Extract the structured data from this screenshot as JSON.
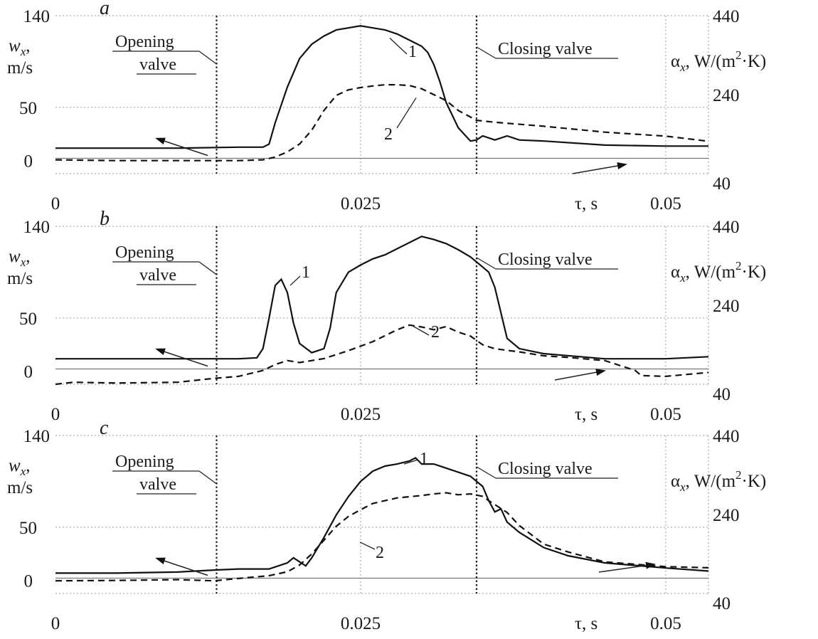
{
  "chart_data": [
    {
      "type": "line",
      "panel_letter": "a",
      "x_ticks": [
        "0",
        "0.025",
        "0.05"
      ],
      "x_axis_label": "τ, s",
      "xlim": [
        0,
        0.0535
      ],
      "left_axis": {
        "ticks": [
          "140",
          "50",
          "0"
        ],
        "ylim": [
          -15,
          140
        ],
        "label_main": "w",
        "label_sub": "x",
        "label_comma": ",",
        "label_unit": "m/s"
      },
      "right_axis": {
        "ticks": [
          "440",
          "240",
          "40"
        ],
        "ylim": [
          40,
          440
        ],
        "label_main": "α",
        "label_sub": "x",
        "label_rest": ", W/(m",
        "label_sup": "2",
        "label_end": "·K)"
      },
      "opening_valve": {
        "x": 0.0132,
        "line1": "Opening",
        "line2": "valve"
      },
      "closing_valve": {
        "x": 0.0345,
        "text": "Closing valve"
      },
      "series": [
        {
          "name": "1",
          "axis": "left",
          "style": "solid",
          "label": "1",
          "x": [
            0,
            0.005,
            0.01,
            0.015,
            0.017,
            0.0175,
            0.018,
            0.019,
            0.02,
            0.021,
            0.022,
            0.023,
            0.024,
            0.025,
            0.026,
            0.027,
            0.028,
            0.029,
            0.03,
            0.0305,
            0.031,
            0.0315,
            0.032,
            0.033,
            0.034,
            0.0345,
            0.035,
            0.036,
            0.037,
            0.038,
            0.04,
            0.045,
            0.05,
            0.0535
          ],
          "y": [
            10,
            10,
            10,
            11,
            11,
            14,
            35,
            70,
            98,
            112,
            120,
            126,
            128,
            130,
            128,
            126,
            122,
            116,
            110,
            104,
            92,
            75,
            55,
            30,
            17,
            18,
            22,
            18,
            22,
            18,
            17,
            13,
            12,
            12
          ]
        },
        {
          "name": "2",
          "axis": "right",
          "style": "dashed",
          "label": "2",
          "x": [
            0,
            0.005,
            0.01,
            0.015,
            0.017,
            0.018,
            0.019,
            0.02,
            0.021,
            0.022,
            0.023,
            0.024,
            0.025,
            0.026,
            0.027,
            0.028,
            0.029,
            0.03,
            0.031,
            0.032,
            0.033,
            0.0345,
            0.036,
            0.04,
            0.045,
            0.05,
            0.0535
          ],
          "y": [
            75,
            73,
            73,
            73,
            75,
            82,
            95,
            115,
            150,
            200,
            238,
            252,
            258,
            262,
            265,
            265,
            263,
            255,
            240,
            225,
            200,
            175,
            170,
            160,
            145,
            135,
            122
          ]
        }
      ]
    },
    {
      "type": "line",
      "panel_letter": "b",
      "x_ticks": [
        "0",
        "0.025",
        "0.05"
      ],
      "x_axis_label": "τ, s",
      "xlim": [
        0,
        0.0535
      ],
      "left_axis": {
        "ticks": [
          "140",
          "50",
          "0"
        ],
        "ylim": [
          -15,
          140
        ],
        "label_main": "w",
        "label_sub": "x",
        "label_comma": ",",
        "label_unit": "m/s"
      },
      "right_axis": {
        "ticks": [
          "440",
          "240",
          "40"
        ],
        "ylim": [
          40,
          440
        ],
        "label_main": "α",
        "label_sub": "x",
        "label_rest": ", W/(m",
        "label_sup": "2",
        "label_end": "·K)"
      },
      "opening_valve": {
        "x": 0.0132,
        "line1": "Opening",
        "line2": "valve"
      },
      "closing_valve": {
        "x": 0.0345,
        "text": "Closing valve"
      },
      "series": [
        {
          "name": "1",
          "axis": "left",
          "style": "solid",
          "label": "1",
          "x": [
            0,
            0.005,
            0.01,
            0.015,
            0.0165,
            0.017,
            0.0175,
            0.018,
            0.0185,
            0.019,
            0.0195,
            0.02,
            0.021,
            0.022,
            0.0225,
            0.023,
            0.024,
            0.025,
            0.026,
            0.027,
            0.028,
            0.029,
            0.03,
            0.031,
            0.032,
            0.033,
            0.034,
            0.035,
            0.0355,
            0.036,
            0.0365,
            0.037,
            0.038,
            0.04,
            0.045,
            0.05,
            0.0535
          ],
          "y": [
            10,
            10,
            10,
            10,
            11,
            20,
            50,
            82,
            88,
            75,
            45,
            25,
            16,
            20,
            40,
            75,
            95,
            102,
            108,
            112,
            118,
            124,
            130,
            127,
            123,
            117,
            110,
            100,
            95,
            80,
            55,
            30,
            20,
            15,
            10,
            10,
            12
          ]
        },
        {
          "name": "2",
          "axis": "right",
          "style": "dashed",
          "label": "2",
          "x": [
            0,
            0.0015,
            0.005,
            0.01,
            0.013,
            0.015,
            0.017,
            0.018,
            0.019,
            0.02,
            0.022,
            0.024,
            0.026,
            0.028,
            0.029,
            0.03,
            0.031,
            0.032,
            0.033,
            0.034,
            0.035,
            0.036,
            0.038,
            0.04,
            0.042,
            0.045,
            0.0475,
            0.048,
            0.05,
            0.0535
          ],
          "y": [
            40,
            45,
            43,
            45,
            55,
            60,
            75,
            90,
            100,
            95,
            105,
            125,
            148,
            178,
            190,
            185,
            178,
            186,
            172,
            162,
            140,
            130,
            122,
            112,
            108,
            100,
            75,
            62,
            60,
            70
          ]
        }
      ]
    },
    {
      "type": "line",
      "panel_letter": "c",
      "x_ticks": [
        "0",
        "0.025",
        "0.05"
      ],
      "x_axis_label": "τ, s",
      "xlim": [
        0,
        0.0535
      ],
      "left_axis": {
        "ticks": [
          "140",
          "50",
          "0"
        ],
        "ylim": [
          -15,
          140
        ],
        "label_main": "w",
        "label_sub": "x",
        "label_comma": ",",
        "label_unit": "m/s"
      },
      "right_axis": {
        "ticks": [
          "440",
          "240",
          "40"
        ],
        "ylim": [
          40,
          440
        ],
        "label_main": "α",
        "label_sub": "x",
        "label_rest": ", W/(m",
        "label_sup": "2",
        "label_end": "·K)"
      },
      "opening_valve": {
        "x": 0.0132,
        "line1": "Opening",
        "line2": "valve"
      },
      "closing_valve": {
        "x": 0.0345,
        "text": "Closing valve"
      },
      "series": [
        {
          "name": "1",
          "axis": "left",
          "style": "solid",
          "label": "1",
          "x": [
            0,
            0.005,
            0.01,
            0.013,
            0.015,
            0.0175,
            0.019,
            0.0195,
            0.02,
            0.0205,
            0.021,
            0.022,
            0.023,
            0.024,
            0.025,
            0.026,
            0.027,
            0.028,
            0.029,
            0.0295,
            0.03,
            0.031,
            0.032,
            0.033,
            0.034,
            0.035,
            0.0355,
            0.036,
            0.0365,
            0.037,
            0.038,
            0.04,
            0.042,
            0.045,
            0.05,
            0.0535
          ],
          "y": [
            5,
            5,
            6,
            8,
            9,
            9,
            15,
            20,
            16,
            12,
            20,
            40,
            62,
            80,
            95,
            105,
            110,
            112,
            115,
            118,
            112,
            112,
            108,
            104,
            100,
            90,
            76,
            65,
            68,
            55,
            45,
            30,
            22,
            15,
            10,
            7
          ]
        },
        {
          "name": "2",
          "axis": "right",
          "style": "dashed",
          "label": "2",
          "x": [
            0,
            0.005,
            0.01,
            0.013,
            0.015,
            0.0175,
            0.019,
            0.02,
            0.021,
            0.022,
            0.023,
            0.024,
            0.025,
            0.026,
            0.027,
            0.028,
            0.03,
            0.031,
            0.032,
            0.033,
            0.034,
            0.035,
            0.0355,
            0.036,
            0.037,
            0.038,
            0.04,
            0.042,
            0.045,
            0.05,
            0.0535
          ],
          "y": [
            72,
            73,
            75,
            72,
            78,
            85,
            95,
            112,
            140,
            175,
            210,
            235,
            252,
            268,
            275,
            282,
            288,
            292,
            295,
            290,
            292,
            286,
            275,
            265,
            245,
            212,
            165,
            145,
            120,
            108,
            105
          ]
        }
      ]
    }
  ]
}
